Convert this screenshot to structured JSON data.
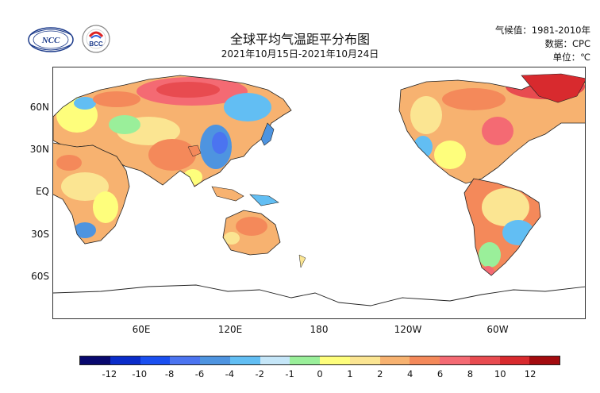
{
  "header": {
    "title": "全球平均气温距平分布图",
    "subtitle": "2021年10月15日-2021年10月24日",
    "climatology": "气候值：1981-2010年",
    "data_source": "数据：CPC",
    "unit": "单位：℃"
  },
  "logos": {
    "ncc": {
      "text": "NCC"
    },
    "bcc": {
      "text": "BCC"
    }
  },
  "axes": {
    "lat_labels": [
      "60N",
      "30N",
      "EQ",
      "30S",
      "60S"
    ],
    "lon_labels": [
      "60E",
      "120E",
      "180",
      "120W",
      "60W"
    ]
  },
  "legend": {
    "colors": [
      "#08086e",
      "#0a2cc9",
      "#1a4ff0",
      "#4b74f0",
      "#4e94e0",
      "#62bef3",
      "#c5e6f8",
      "#9aef9a",
      "#fefe7c",
      "#fbe592",
      "#f7b270",
      "#f4895a",
      "#f46a73",
      "#e84b50",
      "#d82a2e",
      "#a30b0f"
    ],
    "labels": [
      "-12",
      "-10",
      "-8",
      "-6",
      "-4",
      "-2",
      "-1",
      "0",
      "1",
      "2",
      "4",
      "6",
      "8",
      "10",
      "12"
    ]
  }
}
